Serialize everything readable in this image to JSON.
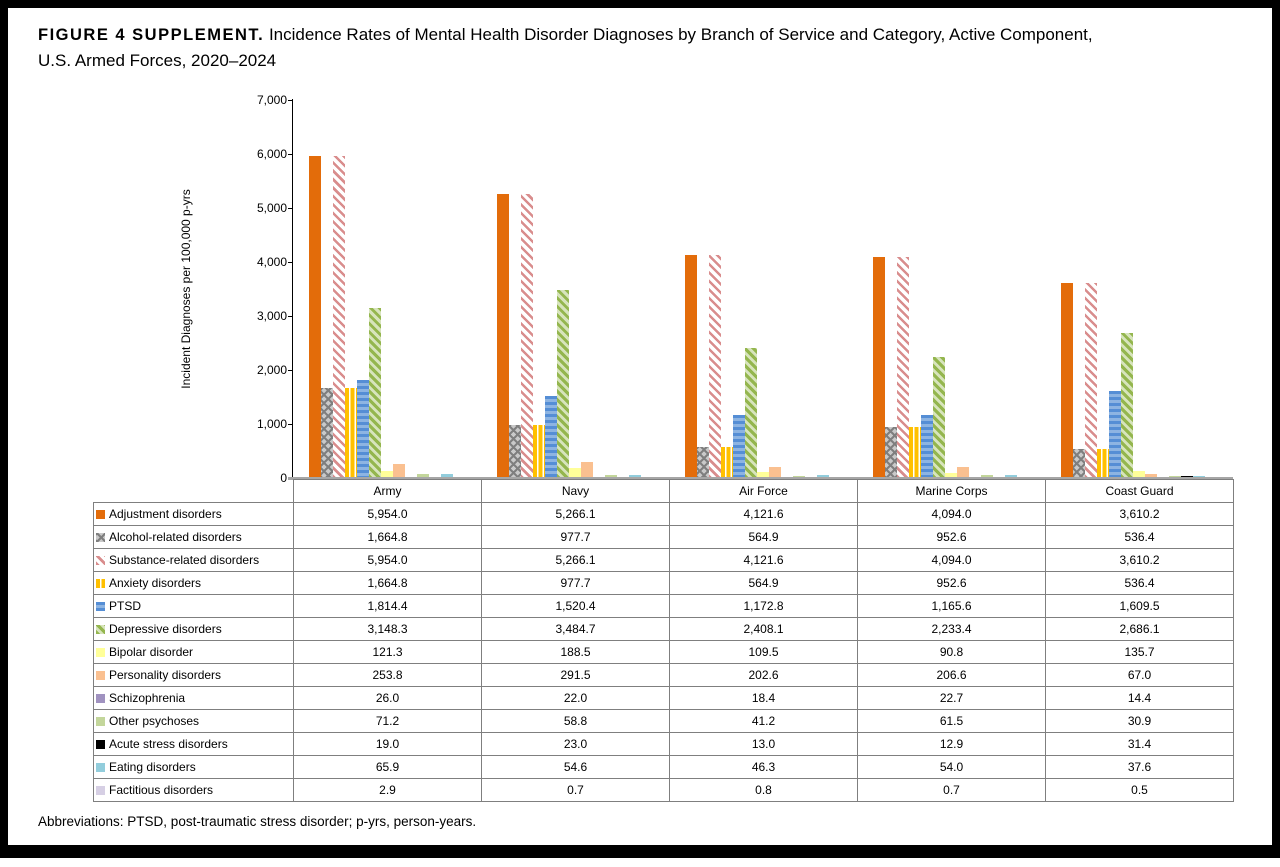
{
  "title": {
    "label": "FIGURE 4 SUPPLEMENT.",
    "rest": "Incidence Rates of Mental Health Disorder Diagnoses by Branch of Service and Category, Active Component,",
    "line2": "U.S. Armed Forces, 2020–2024"
  },
  "footer": "Abbreviations: PTSD, post-traumatic stress disorder; p-yrs, person-years.",
  "chart_data": {
    "type": "bar",
    "title": "FIGURE 4 SUPPLEMENT. Incidence Rates of Mental Health Disorder Diagnoses by Branch of Service and Category, Active Component, U.S. Armed Forces, 2020–2024",
    "ylabel": "Incident Diagnoses per 100,000 p-yrs",
    "ylim": [
      0,
      7000
    ],
    "ytick_labels": [
      "0",
      "1,000",
      "2,000",
      "3,000",
      "4,000",
      "5,000",
      "6,000",
      "7,000"
    ],
    "grid": false,
    "legend_position": "table-left-column",
    "categories": [
      "Army",
      "Navy",
      "Air Force",
      "Marine Corps",
      "Coast Guard"
    ],
    "series": [
      {
        "name": "Adjustment disorders",
        "pattern": "solid",
        "color": "#E36C0A",
        "color2": "#E36C0A",
        "values": [
          "5,954.0",
          "5,266.1",
          "4,121.6",
          "4,094.0",
          "3,610.2"
        ]
      },
      {
        "name": "Alcohol-related disorders",
        "pattern": "gray-weave",
        "color": "#7F7F7F",
        "color2": "#C9C9C9",
        "values": [
          "1,664.8",
          "977.7",
          "564.9",
          "952.6",
          "536.4"
        ]
      },
      {
        "name": "Substance-related disorders",
        "pattern": "diagonal-stripe",
        "color": "#D98D8D",
        "color2": "#FFFFFF",
        "values": [
          "5,954.0",
          "5,266.1",
          "4,121.6",
          "4,094.0",
          "3,610.2"
        ]
      },
      {
        "name": "Anxiety disorders",
        "pattern": "vertical-stripe",
        "color": "#FFC000",
        "color2": "#FFFFFF",
        "values": [
          "1,664.8",
          "977.7",
          "564.9",
          "952.6",
          "536.4"
        ]
      },
      {
        "name": "PTSD",
        "pattern": "horizontal-stripe",
        "color": "#558ED5",
        "color2": "#8DB4E2",
        "values": [
          "1,814.4",
          "1,520.4",
          "1,172.8",
          "1,165.6",
          "1,609.5"
        ]
      },
      {
        "name": "Depressive disorders",
        "pattern": "green-dash",
        "color": "#94B64E",
        "color2": "#D7E4BC",
        "values": [
          "3,148.3",
          "3,484.7",
          "2,408.1",
          "2,233.4",
          "2,686.1"
        ]
      },
      {
        "name": "Bipolar disorder",
        "pattern": "solid",
        "color": "#FFFF99",
        "color2": "#FFFF99",
        "values": [
          "121.3",
          "188.5",
          "109.5",
          "90.8",
          "135.7"
        ]
      },
      {
        "name": "Personality disorders",
        "pattern": "solid",
        "color": "#FAC090",
        "color2": "#FAC090",
        "values": [
          "253.8",
          "291.5",
          "202.6",
          "206.6",
          "67.0"
        ]
      },
      {
        "name": "Schizophrenia",
        "pattern": "solid",
        "color": "#A092C0",
        "color2": "#A092C0",
        "values": [
          "26.0",
          "22.0",
          "18.4",
          "22.7",
          "14.4"
        ]
      },
      {
        "name": "Other psychoses",
        "pattern": "solid",
        "color": "#C3D69B",
        "color2": "#C3D69B",
        "values": [
          "71.2",
          "58.8",
          "41.2",
          "61.5",
          "30.9"
        ]
      },
      {
        "name": "Acute stress disorders",
        "pattern": "solid",
        "color": "#000000",
        "color2": "#000000",
        "values": [
          "19.0",
          "23.0",
          "13.0",
          "12.9",
          "31.4"
        ]
      },
      {
        "name": "Eating disorders",
        "pattern": "solid",
        "color": "#92CDDC",
        "color2": "#92CDDC",
        "values": [
          "65.9",
          "54.6",
          "46.3",
          "54.0",
          "37.6"
        ]
      },
      {
        "name": "Factitious disorders",
        "pattern": "solid",
        "color": "#D6CFE4",
        "color2": "#D6CFE4",
        "values": [
          "2.9",
          "0.7",
          "0.8",
          "0.7",
          "0.5"
        ]
      }
    ]
  }
}
